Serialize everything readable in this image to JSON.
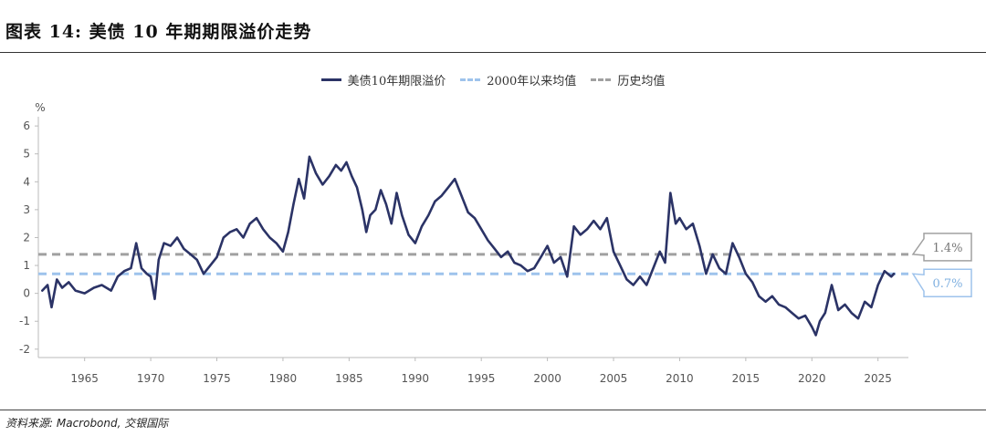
{
  "title": "图表 14: 美债 10 年期期限溢价走势",
  "source": "资料来源: Macrobond, 交银国际",
  "chart_data": {
    "type": "line",
    "ylabel": "%",
    "ylim": [
      -2.3,
      6.2
    ],
    "xlim": [
      1961.5,
      2027.3
    ],
    "y_ticks": [
      "6",
      "5",
      "4",
      "3",
      "2",
      "1",
      "0",
      "-1",
      "-2"
    ],
    "x_ticks": [
      "1965",
      "1970",
      "1975",
      "1980",
      "1985",
      "1990",
      "1995",
      "2000",
      "2005",
      "2010",
      "2015",
      "2020",
      "2025"
    ],
    "legend": [
      "美债10年期限溢价",
      "2000年以来均值",
      "历史均值"
    ],
    "series": [
      {
        "name": "美债10年期限溢价",
        "color": "#2b3366",
        "x": [
          1961.8,
          1962.2,
          1962.5,
          1962.9,
          1963.3,
          1963.8,
          1964.3,
          1965.0,
          1965.7,
          1966.3,
          1967.0,
          1967.5,
          1968.0,
          1968.5,
          1968.9,
          1969.3,
          1969.7,
          1970.0,
          1970.3,
          1970.6,
          1971.0,
          1971.5,
          1972.0,
          1972.5,
          1973.0,
          1973.5,
          1974.0,
          1974.5,
          1975.0,
          1975.5,
          1976.0,
          1976.5,
          1977.0,
          1977.5,
          1978.0,
          1978.5,
          1979.0,
          1979.5,
          1980.0,
          1980.4,
          1980.8,
          1981.2,
          1981.6,
          1982.0,
          1982.5,
          1983.0,
          1983.5,
          1984.0,
          1984.4,
          1984.8,
          1985.2,
          1985.6,
          1986.0,
          1986.3,
          1986.6,
          1987.0,
          1987.4,
          1987.8,
          1988.2,
          1988.6,
          1989.0,
          1989.5,
          1990.0,
          1990.5,
          1991.0,
          1991.5,
          1992.0,
          1992.5,
          1993.0,
          1993.5,
          1994.0,
          1994.5,
          1995.0,
          1995.5,
          1996.0,
          1996.5,
          1997.0,
          1997.5,
          1998.0,
          1998.5,
          1999.0,
          1999.5,
          2000.0,
          2000.5,
          2001.0,
          2001.5,
          2002.0,
          2002.5,
          2003.0,
          2003.5,
          2004.0,
          2004.5,
          2005.0,
          2005.5,
          2006.0,
          2006.5,
          2007.0,
          2007.5,
          2008.0,
          2008.5,
          2008.9,
          2009.3,
          2009.7,
          2010.0,
          2010.5,
          2011.0,
          2011.5,
          2012.0,
          2012.5,
          2013.0,
          2013.5,
          2014.0,
          2014.5,
          2015.0,
          2015.5,
          2016.0,
          2016.5,
          2017.0,
          2017.5,
          2018.0,
          2018.5,
          2019.0,
          2019.5,
          2020.0,
          2020.3,
          2020.6,
          2021.0,
          2021.5,
          2022.0,
          2022.5,
          2023.0,
          2023.5,
          2024.0,
          2024.5,
          2025.0,
          2025.5,
          2026.0,
          2026.2
        ],
        "values": [
          0.1,
          0.3,
          -0.5,
          0.5,
          0.2,
          0.4,
          0.1,
          0.0,
          0.2,
          0.3,
          0.1,
          0.6,
          0.8,
          0.9,
          1.8,
          0.9,
          0.7,
          0.6,
          -0.2,
          1.2,
          1.8,
          1.7,
          2.0,
          1.6,
          1.4,
          1.2,
          0.7,
          1.0,
          1.3,
          2.0,
          2.2,
          2.3,
          2.0,
          2.5,
          2.7,
          2.3,
          2.0,
          1.8,
          1.5,
          2.2,
          3.2,
          4.1,
          3.4,
          4.9,
          4.3,
          3.9,
          4.2,
          4.6,
          4.4,
          4.7,
          4.2,
          3.8,
          3.0,
          2.2,
          2.8,
          3.0,
          3.7,
          3.2,
          2.5,
          3.6,
          2.8,
          2.1,
          1.8,
          2.4,
          2.8,
          3.3,
          3.5,
          3.8,
          4.1,
          3.5,
          2.9,
          2.7,
          2.3,
          1.9,
          1.6,
          1.3,
          1.5,
          1.1,
          1.0,
          0.8,
          0.9,
          1.3,
          1.7,
          1.1,
          1.3,
          0.6,
          2.4,
          2.1,
          2.3,
          2.6,
          2.3,
          2.7,
          1.5,
          1.0,
          0.5,
          0.3,
          0.6,
          0.3,
          0.9,
          1.5,
          1.1,
          3.6,
          2.5,
          2.7,
          2.3,
          2.5,
          1.7,
          0.7,
          1.4,
          0.9,
          0.7,
          1.8,
          1.3,
          0.7,
          0.4,
          -0.1,
          -0.3,
          -0.1,
          -0.4,
          -0.5,
          -0.7,
          -0.9,
          -0.8,
          -1.2,
          -1.5,
          -1.0,
          -0.7,
          0.3,
          -0.6,
          -0.4,
          -0.7,
          -0.9,
          -0.3,
          -0.5,
          0.3,
          0.8,
          0.6,
          0.7
        ]
      },
      {
        "name": "2000年以来均值",
        "color": "#9ec3ec",
        "value": 0.7,
        "label": "0.7%"
      },
      {
        "name": "历史均值",
        "color": "#a0a0a0",
        "value": 1.4,
        "label": "1.4%"
      }
    ]
  }
}
